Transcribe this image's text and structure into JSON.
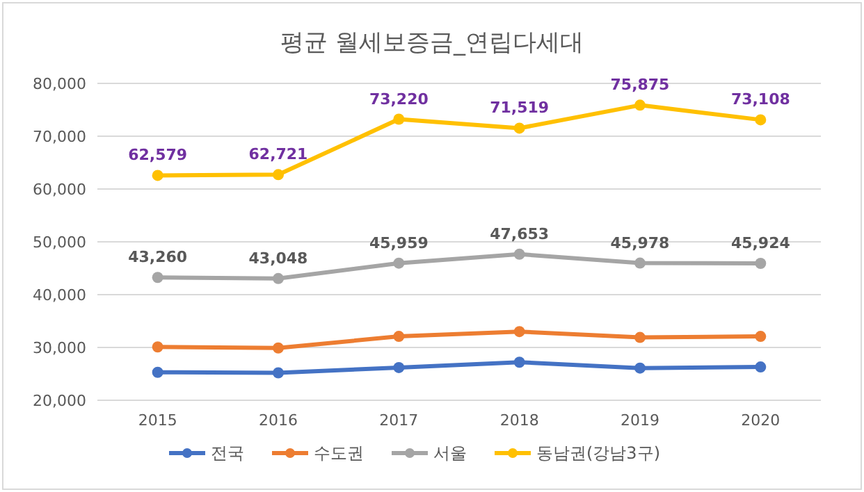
{
  "chart_data": {
    "type": "line",
    "title": "평균 월세보증금_연립다세대",
    "categories": [
      "2015",
      "2016",
      "2017",
      "2018",
      "2019",
      "2020"
    ],
    "series": [
      {
        "name": "전국",
        "color": "#4472c4",
        "values": [
          25300,
          25200,
          26200,
          27200,
          26100,
          26300
        ]
      },
      {
        "name": "수도권",
        "color": "#ed7d31",
        "values": [
          30100,
          29900,
          32100,
          33000,
          31900,
          32100
        ]
      },
      {
        "name": "서울",
        "color": "#a5a5a5",
        "values": [
          43260,
          43048,
          45959,
          47653,
          45978,
          45924
        ],
        "value_labels": [
          "43,260",
          "43,048",
          "45,959",
          "47,653",
          "45,978",
          "45,924"
        ]
      },
      {
        "name": "동남권(강남3구)",
        "color": "#ffc000",
        "values": [
          62579,
          62721,
          73220,
          71519,
          75875,
          73108
        ],
        "value_labels": [
          "62,579",
          "62,721",
          "73,220",
          "71,519",
          "75,875",
          "73,108"
        ]
      }
    ],
    "ylim": [
      20000,
      80000
    ],
    "yticks": [
      {
        "value": 20000,
        "label": "20,000"
      },
      {
        "value": 30000,
        "label": "30,000"
      },
      {
        "value": 40000,
        "label": "40,000"
      },
      {
        "value": 50000,
        "label": "50,000"
      },
      {
        "value": 60000,
        "label": "60,000"
      },
      {
        "value": 70000,
        "label": "70,000"
      },
      {
        "value": 80000,
        "label": "80,000"
      }
    ],
    "grid": "y",
    "legend": "bottom",
    "marker": "circle",
    "line_style": "solid"
  }
}
